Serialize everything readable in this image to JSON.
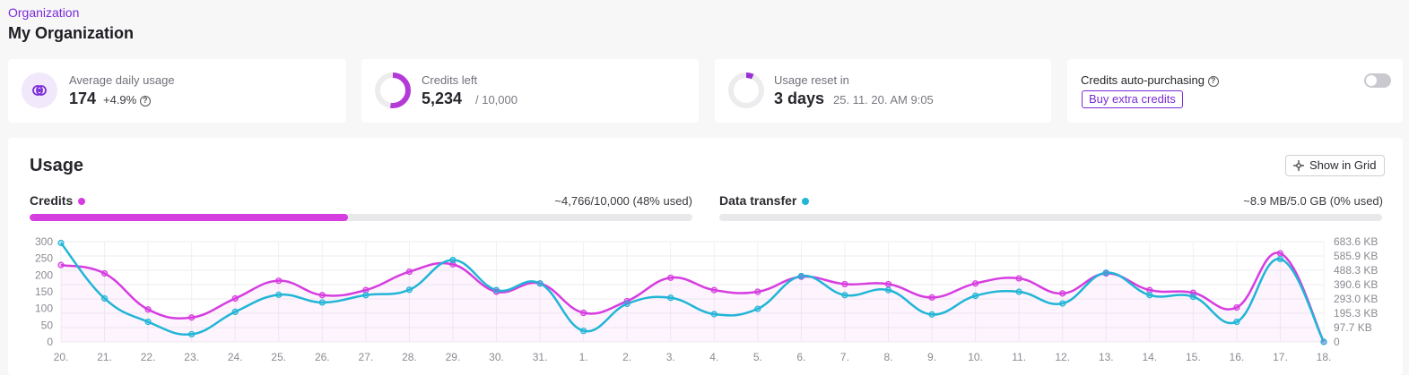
{
  "header": {
    "breadcrumb": "Organization",
    "title": "My Organization"
  },
  "stats": {
    "avg_daily": {
      "label": "Average daily usage",
      "value": "174",
      "change": "+4.9%",
      "icon": "eye-icon"
    },
    "credits_left": {
      "label": "Credits left",
      "value": "5,234",
      "total": "/ 10,000",
      "fraction": 0.5234
    },
    "usage_reset": {
      "label": "Usage reset in",
      "value": "3 days",
      "date": "25. 11. 20. AM 9:05",
      "fraction": 0.07
    },
    "auto_purchase": {
      "label": "Credits auto-purchasing",
      "button": "Buy extra credits",
      "enabled": false
    }
  },
  "usage": {
    "title": "Usage",
    "grid_button": "Show in Grid",
    "credits": {
      "label": "Credits",
      "value": "~4,766/10,000 (48% used)",
      "fraction": 0.48,
      "color": "#d63de0"
    },
    "transfer": {
      "label": "Data transfer",
      "value": "~8.9 MB/5.0 GB (0% used)",
      "fraction": 0.0,
      "color": "#21b5d6"
    }
  },
  "chart_data": {
    "type": "line",
    "x": [
      "20.",
      "21.",
      "22.",
      "23.",
      "24.",
      "25.",
      "26.",
      "27.",
      "28.",
      "29.",
      "30.",
      "31.",
      "1.",
      "2.",
      "3.",
      "4.",
      "5.",
      "6.",
      "7.",
      "8.",
      "9.",
      "10.",
      "11.",
      "12.",
      "13.",
      "14.",
      "15.",
      "16.",
      "17.",
      "18."
    ],
    "y_left_ticks": [
      "0",
      "50",
      "100",
      "150",
      "200",
      "250",
      "300"
    ],
    "y_right_ticks": [
      "0",
      "97.7 KB",
      "195.3 KB",
      "293.0 KB",
      "390.6 KB",
      "488.3 KB",
      "585.9 KB",
      "683.6 KB"
    ],
    "ylim_left": [
      0,
      300
    ],
    "series": [
      {
        "name": "Credits",
        "color": "#d63de0",
        "axis": "left",
        "values": [
          230,
          205,
          97,
          73,
          130,
          183,
          140,
          155,
          210,
          232,
          150,
          175,
          87,
          122,
          192,
          155,
          150,
          195,
          173,
          173,
          133,
          175,
          190,
          145,
          205,
          155,
          147,
          103,
          265,
          0
        ]
      },
      {
        "name": "Data transfer",
        "color": "#21b5d6",
        "axis": "left",
        "values": [
          296,
          130,
          60,
          23,
          90,
          141,
          118,
          140,
          156,
          245,
          155,
          175,
          33,
          114,
          132,
          83,
          99,
          197,
          140,
          155,
          82,
          138,
          150,
          115,
          207,
          140,
          135,
          60,
          248,
          0
        ]
      }
    ],
    "grid": true
  }
}
